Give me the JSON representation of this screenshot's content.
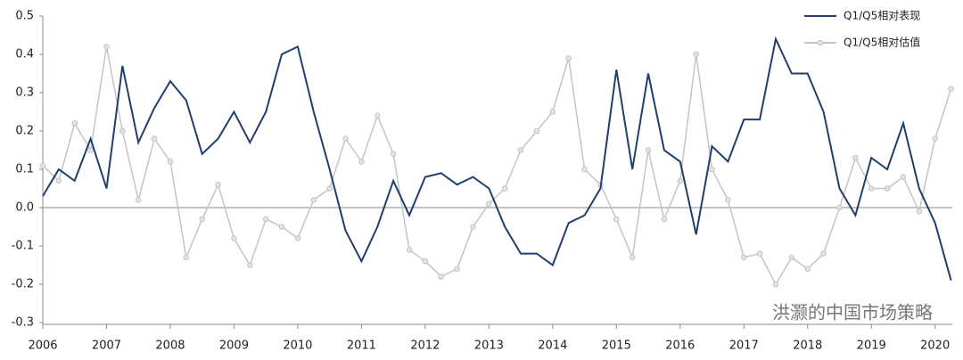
{
  "chart_data": {
    "type": "line",
    "x": [
      2006,
      2006.25,
      2006.5,
      2006.75,
      2007,
      2007.25,
      2007.5,
      2007.75,
      2008,
      2008.25,
      2008.5,
      2008.75,
      2009,
      2009.25,
      2009.5,
      2009.75,
      2010,
      2010.25,
      2010.5,
      2010.75,
      2011,
      2011.25,
      2011.5,
      2011.75,
      2012,
      2012.25,
      2012.5,
      2012.75,
      2013,
      2013.25,
      2013.5,
      2013.75,
      2014,
      2014.25,
      2014.5,
      2014.75,
      2015,
      2015.25,
      2015.5,
      2015.75,
      2016,
      2016.25,
      2016.5,
      2016.75,
      2017,
      2017.25,
      2017.5,
      2017.75,
      2018,
      2018.25,
      2018.5,
      2018.75,
      2019,
      2019.25,
      2019.5,
      2019.75,
      2020,
      2020.25
    ],
    "series": [
      {
        "name": "Q1/Q5相对表现",
        "color": "#1f3f6e",
        "markers": false,
        "values": [
          0.03,
          0.1,
          0.07,
          0.18,
          0.05,
          0.37,
          0.17,
          0.26,
          0.33,
          0.28,
          0.14,
          0.18,
          0.25,
          0.17,
          0.25,
          0.4,
          0.42,
          0.25,
          0.1,
          -0.06,
          -0.14,
          -0.05,
          0.07,
          -0.02,
          0.08,
          0.09,
          0.06,
          0.08,
          0.05,
          -0.05,
          -0.12,
          -0.12,
          -0.15,
          -0.04,
          -0.02,
          0.05,
          0.36,
          0.1,
          0.35,
          0.15,
          0.12,
          -0.07,
          0.16,
          0.12,
          0.23,
          0.23,
          0.44,
          0.35,
          0.35,
          0.25,
          0.05,
          -0.02,
          0.13,
          0.1,
          0.22,
          0.05,
          -0.04,
          -0.19
        ]
      },
      {
        "name": "Q1/Q5相对估值",
        "color": "#c4c4c4",
        "markers": true,
        "values": [
          0.11,
          0.07,
          0.22,
          0.15,
          0.42,
          0.2,
          0.02,
          0.18,
          0.12,
          -0.13,
          -0.03,
          0.06,
          -0.08,
          -0.15,
          -0.03,
          -0.05,
          -0.08,
          0.02,
          0.05,
          0.18,
          0.12,
          0.24,
          0.14,
          -0.11,
          -0.14,
          -0.18,
          -0.16,
          -0.05,
          0.01,
          0.05,
          0.15,
          0.2,
          0.25,
          0.39,
          0.1,
          0.06,
          -0.03,
          -0.13,
          0.15,
          -0.03,
          0.07,
          0.4,
          0.1,
          0.02,
          -0.13,
          -0.12,
          -0.2,
          -0.13,
          -0.16,
          -0.12,
          0.0,
          0.13,
          0.05,
          0.05,
          0.08,
          -0.01,
          0.18,
          0.31
        ]
      }
    ],
    "xlim": [
      2006,
      2020.27
    ],
    "xticks": [
      2006,
      2007,
      2008,
      2009,
      2010,
      2011,
      2012,
      2013,
      2014,
      2015,
      2016,
      2017,
      2018,
      2019,
      2020
    ],
    "ylim": [
      -0.3,
      0.5
    ],
    "yticks": [
      0.5,
      0.4,
      0.3,
      0.2,
      0.1,
      {
        "value": 0,
        "label": "0.0"
      },
      -0.1,
      -0.2,
      -0.3
    ],
    "zero_line": true,
    "legend": "top-right",
    "watermark": "洪灏的中国市场策略"
  }
}
